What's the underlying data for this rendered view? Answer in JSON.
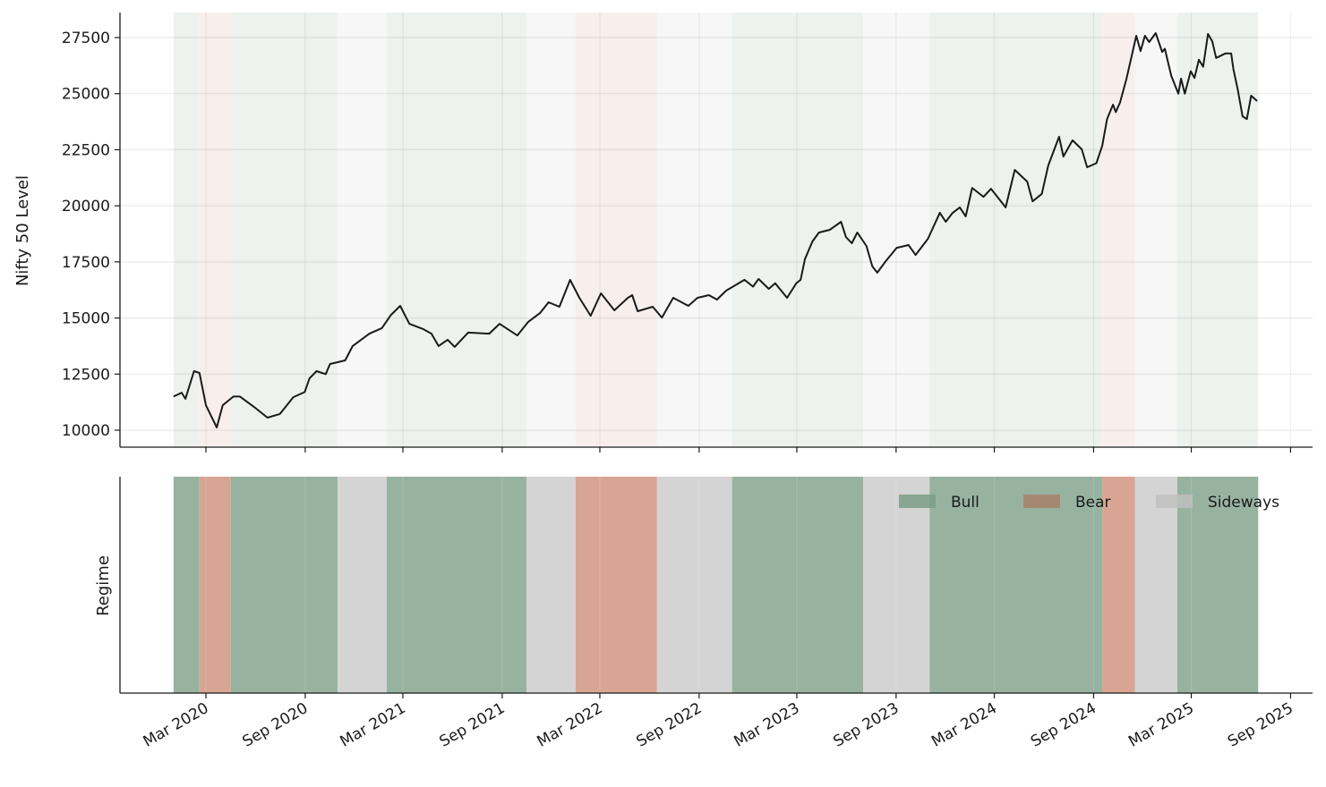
{
  "chart_data": [
    {
      "type": "line",
      "ylabel": "Nifty 50 Level",
      "xlabel": "",
      "ylim": [
        9200,
        28600
      ],
      "xlim": [
        "2019-11-02",
        "2025-10-18"
      ],
      "yticks": [
        "10000",
        "12500",
        "15000",
        "17500",
        "20000",
        "22500",
        "25000",
        "27500"
      ],
      "grid": true,
      "line_color": "#1a1a1a",
      "background_regime_shading": true,
      "series": [
        {
          "points": [
            [
              "2020-01-01",
              11500
            ],
            [
              "2020-01-16",
              11670
            ],
            [
              "2020-01-23",
              11400
            ],
            [
              "2020-02-08",
              12630
            ],
            [
              "2020-02-18",
              12550
            ],
            [
              "2020-03-01",
              11110
            ],
            [
              "2020-03-21",
              10120
            ],
            [
              "2020-04-01",
              11110
            ],
            [
              "2020-04-21",
              11500
            ],
            [
              "2020-05-03",
              11500
            ],
            [
              "2020-05-29",
              11040
            ],
            [
              "2020-06-23",
              10560
            ],
            [
              "2020-07-16",
              10720
            ],
            [
              "2020-08-10",
              11470
            ],
            [
              "2020-08-31",
              11700
            ],
            [
              "2020-09-09",
              12310
            ],
            [
              "2020-09-22",
              12630
            ],
            [
              "2020-10-09",
              12500
            ],
            [
              "2020-10-17",
              12950
            ],
            [
              "2020-11-14",
              13110
            ],
            [
              "2020-11-28",
              13750
            ],
            [
              "2020-12-29",
              14300
            ],
            [
              "2021-01-21",
              14550
            ],
            [
              "2021-02-07",
              15140
            ],
            [
              "2021-02-24",
              15540
            ],
            [
              "2021-03-13",
              14740
            ],
            [
              "2021-04-08",
              14500
            ],
            [
              "2021-04-23",
              14300
            ],
            [
              "2021-05-06",
              13750
            ],
            [
              "2021-05-23",
              14030
            ],
            [
              "2021-06-05",
              13710
            ],
            [
              "2021-06-30",
              14350
            ],
            [
              "2021-08-08",
              14300
            ],
            [
              "2021-08-27",
              14740
            ],
            [
              "2021-09-29",
              14220
            ],
            [
              "2021-10-19",
              14820
            ],
            [
              "2021-11-10",
              15220
            ],
            [
              "2021-11-26",
              15700
            ],
            [
              "2021-12-16",
              15500
            ],
            [
              "2022-01-05",
              16700
            ],
            [
              "2022-01-22",
              15900
            ],
            [
              "2022-02-12",
              15100
            ],
            [
              "2022-03-03",
              16100
            ],
            [
              "2022-03-28",
              15340
            ],
            [
              "2022-04-22",
              15900
            ],
            [
              "2022-04-30",
              16020
            ],
            [
              "2022-05-10",
              15300
            ],
            [
              "2022-06-07",
              15500
            ],
            [
              "2022-06-24",
              15020
            ],
            [
              "2022-07-15",
              15900
            ],
            [
              "2022-08-12",
              15540
            ],
            [
              "2022-08-29",
              15900
            ],
            [
              "2022-09-19",
              16020
            ],
            [
              "2022-10-04",
              15820
            ],
            [
              "2022-10-21",
              16220
            ],
            [
              "2022-11-24",
              16700
            ],
            [
              "2022-12-10",
              16400
            ],
            [
              "2022-12-20",
              16740
            ],
            [
              "2023-01-08",
              16300
            ],
            [
              "2023-01-20",
              16550
            ],
            [
              "2023-02-11",
              15900
            ],
            [
              "2023-02-28",
              16550
            ],
            [
              "2023-03-08",
              16700
            ],
            [
              "2023-03-16",
              17620
            ],
            [
              "2023-03-30",
              18410
            ],
            [
              "2023-04-11",
              18810
            ],
            [
              "2023-05-01",
              18930
            ],
            [
              "2023-05-22",
              19290
            ],
            [
              "2023-05-31",
              18610
            ],
            [
              "2023-06-11",
              18330
            ],
            [
              "2023-06-21",
              18810
            ],
            [
              "2023-07-08",
              18210
            ],
            [
              "2023-07-19",
              17300
            ],
            [
              "2023-07-28",
              17020
            ],
            [
              "2023-08-13",
              17540
            ],
            [
              "2023-09-02",
              18130
            ],
            [
              "2023-09-24",
              18250
            ],
            [
              "2023-10-07",
              17810
            ],
            [
              "2023-10-30",
              18530
            ],
            [
              "2023-11-21",
              19690
            ],
            [
              "2023-12-02",
              19290
            ],
            [
              "2023-12-15",
              19690
            ],
            [
              "2023-12-28",
              19930
            ],
            [
              "2024-01-08",
              19530
            ],
            [
              "2024-01-20",
              20800
            ],
            [
              "2024-02-10",
              20400
            ],
            [
              "2024-02-24",
              20760
            ],
            [
              "2024-03-22",
              19930
            ],
            [
              "2024-04-08",
              21600
            ],
            [
              "2024-05-01",
              21080
            ],
            [
              "2024-05-11",
              20200
            ],
            [
              "2024-05-28",
              20530
            ],
            [
              "2024-06-09",
              21800
            ],
            [
              "2024-06-29",
              23080
            ],
            [
              "2024-07-07",
              22200
            ],
            [
              "2024-07-24",
              22920
            ],
            [
              "2024-08-10",
              22520
            ],
            [
              "2024-08-20",
              21720
            ],
            [
              "2024-09-06",
              21900
            ],
            [
              "2024-09-17",
              22680
            ],
            [
              "2024-09-26",
              23870
            ],
            [
              "2024-10-07",
              24510
            ],
            [
              "2024-10-12",
              24180
            ],
            [
              "2024-10-20",
              24610
            ],
            [
              "2024-11-01",
              25670
            ],
            [
              "2024-11-09",
              26510
            ],
            [
              "2024-11-19",
              27580
            ],
            [
              "2024-11-27",
              26900
            ],
            [
              "2024-12-05",
              27580
            ],
            [
              "2024-12-13",
              27300
            ],
            [
              "2024-12-25",
              27700
            ],
            [
              "2025-01-06",
              26860
            ],
            [
              "2025-01-11",
              27000
            ],
            [
              "2025-01-23",
              25790
            ],
            [
              "2025-02-05",
              25000
            ],
            [
              "2025-02-10",
              25670
            ],
            [
              "2025-02-17",
              25000
            ],
            [
              "2025-02-28",
              26000
            ],
            [
              "2025-03-07",
              25700
            ],
            [
              "2025-03-15",
              26510
            ],
            [
              "2025-03-23",
              26200
            ],
            [
              "2025-04-01",
              27660
            ],
            [
              "2025-04-09",
              27330
            ],
            [
              "2025-04-16",
              26590
            ],
            [
              "2025-05-03",
              26790
            ],
            [
              "2025-05-14",
              26790
            ],
            [
              "2025-05-18",
              26110
            ],
            [
              "2025-05-26",
              25190
            ],
            [
              "2025-06-04",
              23990
            ],
            [
              "2025-06-12",
              23870
            ],
            [
              "2025-06-20",
              24910
            ],
            [
              "2025-07-01",
              24670
            ]
          ]
        }
      ]
    },
    {
      "type": "timeline",
      "ylabel": "Regime",
      "xticks": [
        "Mar 2020",
        "Sep 2020",
        "Mar 2021",
        "Sep 2021",
        "Mar 2022",
        "Sep 2022",
        "Mar 2023",
        "Sep 2023",
        "Mar 2024",
        "Sep 2024",
        "Mar 2025",
        "Sep 2025"
      ],
      "xtick_dates": [
        "2020-03-01",
        "2020-09-01",
        "2021-03-01",
        "2021-09-01",
        "2022-03-01",
        "2022-09-01",
        "2023-03-01",
        "2023-09-01",
        "2024-03-01",
        "2024-09-01",
        "2025-03-01",
        "2025-09-01"
      ],
      "legend": {
        "position": "top-right",
        "entries": [
          {
            "label": "Bull",
            "color": "#7a9e86"
          },
          {
            "label": "Bear",
            "color": "#a88068"
          },
          {
            "label": "Sideways",
            "color": "#c0c0c0"
          }
        ]
      },
      "regime_colors": {
        "Bull": "#97b3a0",
        "Bear": "#d8a594",
        "Sideways": "#d4d4d4"
      },
      "regime_colors_light": {
        "Bull": "#edf2ee",
        "Bear": "#f8efed",
        "Sideways": "#f7f7f7"
      },
      "regimes": [
        {
          "start": "2020-01-01",
          "end": "2020-02-18",
          "regime": "Bull"
        },
        {
          "start": "2020-02-18",
          "end": "2020-04-16",
          "regime": "Bear"
        },
        {
          "start": "2020-04-16",
          "end": "2020-10-31",
          "regime": "Bull"
        },
        {
          "start": "2020-10-31",
          "end": "2021-01-30",
          "regime": "Sideways"
        },
        {
          "start": "2021-01-30",
          "end": "2021-10-16",
          "regime": "Bull"
        },
        {
          "start": "2021-10-16",
          "end": "2022-01-15",
          "regime": "Sideways"
        },
        {
          "start": "2022-01-15",
          "end": "2022-06-15",
          "regime": "Bear"
        },
        {
          "start": "2022-06-15",
          "end": "2022-11-01",
          "regime": "Sideways"
        },
        {
          "start": "2022-11-01",
          "end": "2023-07-02",
          "regime": "Bull"
        },
        {
          "start": "2023-07-02",
          "end": "2023-11-02",
          "regime": "Sideways"
        },
        {
          "start": "2023-11-02",
          "end": "2024-09-17",
          "regime": "Bull"
        },
        {
          "start": "2024-09-17",
          "end": "2024-11-17",
          "regime": "Bear"
        },
        {
          "start": "2024-11-17",
          "end": "2025-02-03",
          "regime": "Sideways"
        },
        {
          "start": "2025-02-03",
          "end": "2025-07-03",
          "regime": "Bull"
        }
      ]
    }
  ]
}
